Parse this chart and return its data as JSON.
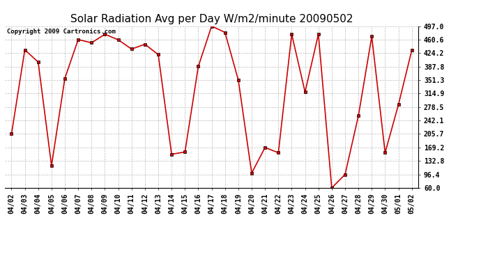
{
  "title": "Solar Radiation Avg per Day W/m2/minute 20090502",
  "copyright": "Copyright 2009 Cartronics.com",
  "dates": [
    "04/02",
    "04/03",
    "04/04",
    "04/05",
    "04/06",
    "04/07",
    "04/08",
    "04/09",
    "04/10",
    "04/11",
    "04/12",
    "04/13",
    "04/14",
    "04/15",
    "04/16",
    "04/17",
    "04/18",
    "04/19",
    "04/20",
    "04/21",
    "04/22",
    "04/23",
    "04/24",
    "04/25",
    "04/26",
    "04/27",
    "04/28",
    "04/29",
    "04/30",
    "05/01",
    "05/02"
  ],
  "values": [
    205.7,
    433.0,
    400.0,
    120.0,
    356.0,
    460.6,
    452.0,
    475.0,
    460.0,
    435.0,
    448.0,
    420.0,
    151.0,
    157.0,
    388.0,
    497.0,
    480.0,
    351.3,
    100.0,
    169.2,
    155.0,
    475.0,
    319.0,
    475.0,
    60.0,
    96.4,
    255.0,
    469.0,
    155.0,
    285.0,
    432.0
  ],
  "line_color": "#cc0000",
  "marker": "s",
  "marker_size": 3,
  "marker_color": "#000000",
  "ylim": [
    60.0,
    497.0
  ],
  "yticks": [
    60.0,
    96.4,
    132.8,
    169.2,
    205.7,
    242.1,
    278.5,
    314.9,
    351.3,
    387.8,
    424.2,
    460.6,
    497.0
  ],
  "background_color": "#ffffff",
  "grid_color": "#aaaaaa",
  "title_fontsize": 11,
  "tick_fontsize": 7,
  "copyright_fontsize": 6.5
}
